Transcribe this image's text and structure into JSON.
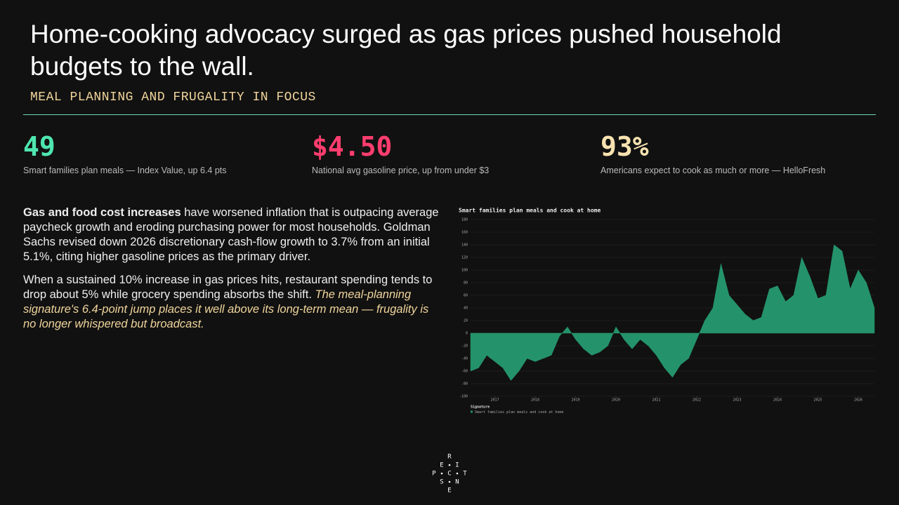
{
  "header": {
    "title": "Home-cooking advocacy surged as gas prices pushed household budgets to the wall.",
    "subtitle": "MEAL PLANNING AND FRUGALITY IN FOCUS"
  },
  "kpis": [
    {
      "value": "49",
      "label": "Smart families plan meals — Index Value, up 6.4 pts"
    },
    {
      "value": "$4.50",
      "label": "National avg gasoline price, up from under $3"
    },
    {
      "value": "93%",
      "label": "Americans expect to cook as much or more — HelloFresh"
    }
  ],
  "body": {
    "paragraphs": [
      {
        "lead": "Gas and food cost increases",
        "text": " have worsened inflation that is outpacing average paycheck growth and eroding purchasing power for most households. Goldman Sachs revised down 2026 discretionary cash-flow growth to 3.7% from an initial 5.1%, citing higher gasoline prices as the primary driver."
      },
      {
        "text": "When a sustained 10% increase in gas prices hits, restaurant spending tends to drop about 5% while grocery spending absorbs the shift. ",
        "emphasis": "The meal-planning signature's 6.4-point jump places it well above its long-term mean — frugality is no longer whispered but broadcast."
      }
    ]
  },
  "chart_data": {
    "type": "area",
    "title": "Smart families plan meals and cook at home",
    "legend_title": "Signature",
    "x": [
      2016.4,
      2016.6,
      2016.8,
      2017.0,
      2017.2,
      2017.4,
      2017.6,
      2017.8,
      2018.0,
      2018.2,
      2018.4,
      2018.6,
      2018.8,
      2019.0,
      2019.2,
      2019.4,
      2019.6,
      2019.8,
      2020.0,
      2020.2,
      2020.4,
      2020.6,
      2020.8,
      2021.0,
      2021.2,
      2021.4,
      2021.6,
      2021.8,
      2022.0,
      2022.2,
      2022.4,
      2022.6,
      2022.8,
      2023.0,
      2023.2,
      2023.4,
      2023.6,
      2023.8,
      2024.0,
      2024.2,
      2024.4,
      2024.6,
      2024.8,
      2025.0,
      2025.2,
      2025.4,
      2025.6,
      2025.8,
      2026.0,
      2026.2,
      2026.4
    ],
    "series": [
      {
        "name": "Smart families plan meals and cook at home",
        "color": "#24936b",
        "values": [
          -60,
          -55,
          -35,
          -45,
          -55,
          -75,
          -60,
          -40,
          -45,
          -40,
          -35,
          -5,
          10,
          -10,
          -25,
          -35,
          -30,
          -20,
          10,
          -10,
          -25,
          -10,
          -20,
          -35,
          -55,
          -70,
          -50,
          -40,
          -10,
          20,
          40,
          110,
          60,
          45,
          30,
          20,
          25,
          70,
          75,
          50,
          60,
          120,
          90,
          55,
          60,
          140,
          130,
          70,
          100,
          80,
          40
        ]
      }
    ],
    "xlim": [
      2016.4,
      2026.4
    ],
    "xticks": [
      2017,
      2018,
      2019,
      2020,
      2021,
      2022,
      2023,
      2024,
      2025,
      2026
    ],
    "ylim": [
      -100,
      180
    ],
    "yticks": [
      -100,
      -80,
      -60,
      -40,
      -20,
      0,
      20,
      40,
      60,
      80,
      100,
      120,
      140,
      160,
      180
    ],
    "grid": true
  },
  "logo": {
    "letters": [
      "R",
      "E",
      "I",
      "P",
      "C",
      "T",
      "S",
      "N",
      "E"
    ]
  }
}
